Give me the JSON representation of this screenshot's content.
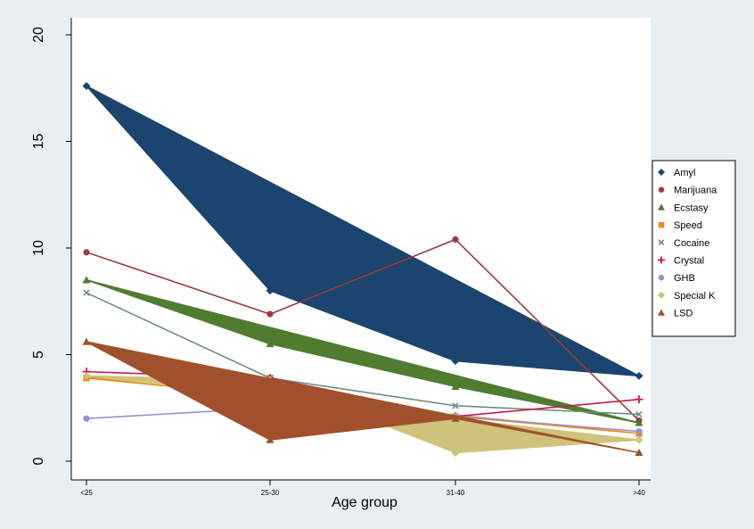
{
  "chart_data": {
    "type": "line",
    "xlabel": "Age group",
    "ylabel": "",
    "categories": [
      "<25",
      "25-30",
      "31-40",
      ">40"
    ],
    "ylim": [
      0,
      20
    ],
    "yticks": [
      0,
      5,
      10,
      15,
      20
    ],
    "grid": false,
    "legend_position": "right",
    "series": [
      {
        "name": "Amyl",
        "marker": "diamond",
        "color": "#1b446e",
        "values": [
          17.6,
          8.0,
          4.7,
          4.0
        ]
      },
      {
        "name": "Marijuana",
        "marker": "circle",
        "color": "#9c3a3f",
        "values": [
          9.8,
          6.9,
          10.4,
          1.9
        ]
      },
      {
        "name": "Ecstasy",
        "marker": "triangle",
        "color": "#4f7c2e",
        "values": [
          8.5,
          5.5,
          3.5,
          1.8
        ]
      },
      {
        "name": "Speed",
        "marker": "square",
        "color": "#ef8a0c",
        "values": [
          3.9,
          3.9,
          2.1,
          1.3
        ]
      },
      {
        "name": "Cocaine",
        "marker": "x",
        "color": "#6f8f7f",
        "values": [
          7.9,
          3.9,
          2.6,
          2.2
        ]
      },
      {
        "name": "Crystal",
        "marker": "plus",
        "color": "#c8194a",
        "values": [
          4.2,
          3.9,
          2.1,
          2.9
        ]
      },
      {
        "name": "GHB",
        "marker": "circle",
        "color": "#9a8fd6",
        "values": [
          2.0,
          2.5,
          2.1,
          1.4
        ]
      },
      {
        "name": "Special K",
        "marker": "diamond",
        "color": "#cfc27a",
        "values": [
          4.0,
          3.8,
          0.4,
          1.0
        ]
      },
      {
        "name": "LSD",
        "marker": "triangle",
        "color": "#a0502a",
        "values": [
          5.6,
          1.0,
          2.0,
          0.4
        ]
      }
    ]
  }
}
